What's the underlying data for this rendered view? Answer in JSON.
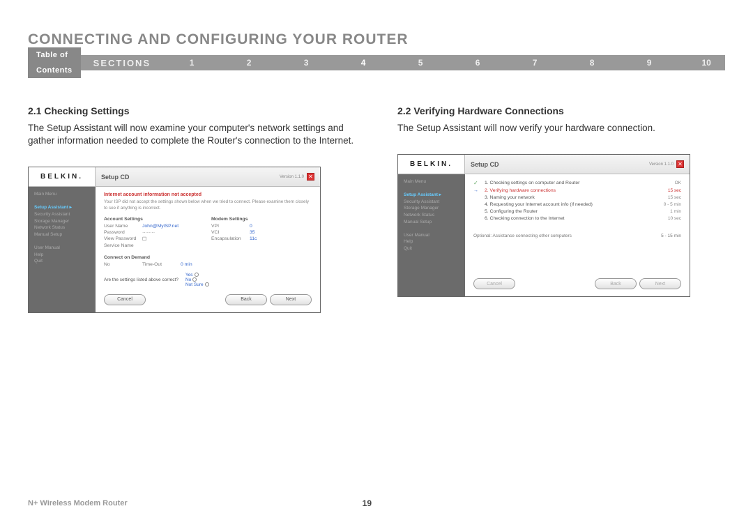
{
  "heading": "CONNECTING AND CONFIGURING YOUR ROUTER",
  "nav": {
    "toc": "Table of Contents",
    "sections_label": "SECTIONS",
    "numbers": [
      "1",
      "2",
      "3",
      "4",
      "5",
      "6",
      "7",
      "8",
      "9",
      "10"
    ],
    "active_index": 3
  },
  "left": {
    "title": "2.1 Checking Settings",
    "text": "The Setup Assistant will now examine your computer's network settings and gather information needed to complete the Router's connection to the Internet."
  },
  "right": {
    "title": "2.2 Verifying Hardware Connections",
    "text": "The Setup Assistant will now verify your hardware connection."
  },
  "shot_common": {
    "logo": "BELKIN.",
    "app_title": "Setup CD",
    "version": "Version 1.1.0",
    "side_menu": {
      "top": [
        "Main Menu"
      ],
      "group1": [
        "Setup Assistant  ▸",
        "Security Assistant",
        "Storage Manager",
        "Network Status",
        "Manual Setup"
      ],
      "group2": [
        "User Manual",
        "Help",
        "Quit"
      ]
    },
    "btn_cancel": "Cancel",
    "btn_back": "Back",
    "btn_next": "Next"
  },
  "shot1": {
    "error_title": "Internet account information not accepted",
    "hint": "Your ISP did not accept the settings shown below when we tried to connect. Please examine them closely to see if anything is incorrect.",
    "acct_label": "Account Settings",
    "modem_label": "Modem Settings",
    "acct": [
      {
        "k": "User Name",
        "v": "John@MyISP.net",
        "link": true
      },
      {
        "k": "Password",
        "v": "········",
        "link": false
      },
      {
        "k": "View Password",
        "v": "☐",
        "link": false
      },
      {
        "k": "Service Name",
        "v": "",
        "link": false
      }
    ],
    "modem": [
      {
        "k": "VPI",
        "v": "0"
      },
      {
        "k": "VCI",
        "v": "35"
      },
      {
        "k": "Encapsulation",
        "v": "11c"
      }
    ],
    "cod_label": "Connect on Demand",
    "cod_no": "No",
    "cod_timeout_k": "Time-Out",
    "cod_timeout_v": "0 min",
    "survey_q": "Are the settings listed above correct?",
    "survey_opts": [
      "Yes",
      "No",
      "Not Sure"
    ]
  },
  "shot2": {
    "steps": [
      {
        "t": "1. Checking settings on computer and Router",
        "v": "OK",
        "done": true
      },
      {
        "t": "2. Verifying hardware connections",
        "v": "15 sec",
        "cur": true
      },
      {
        "t": "3. Naming your network",
        "v": "15 sec"
      },
      {
        "t": "4. Requesting your Internet account info (if needed)",
        "v": "0 - 5 min"
      },
      {
        "t": "5. Configuring the Router",
        "v": "1 min"
      },
      {
        "t": "6. Checking connection to the Internet",
        "v": "10 sec"
      }
    ],
    "optional": {
      "t": "Optional: Assistance connecting other computers",
      "v": "5 - 15 min"
    }
  },
  "footer": {
    "product": "N+ Wireless Modem Router",
    "page": "19"
  }
}
